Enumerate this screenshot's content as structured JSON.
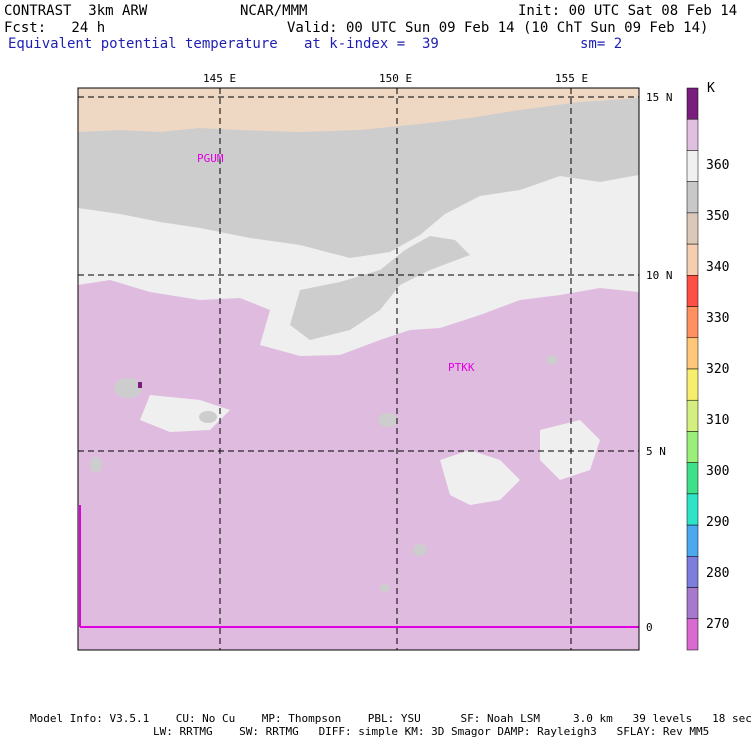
{
  "header": {
    "model": "CONTRAST  3km ARW",
    "center": "NCAR/MMM",
    "init": "Init: 00 UTC Sat 08 Feb 14",
    "fcst": "Fcst:   24 h",
    "valid": "Valid: 00 UTC Sun 09 Feb 14 (10 ChT Sun 09 Feb 14)",
    "field": "Equivalent potential temperature",
    "level": "at k-index =  39",
    "smoothing": "sm= 2"
  },
  "map": {
    "lon_labels": [
      "145 E",
      "150 E",
      "155 E"
    ],
    "lat_labels": [
      "15 N",
      "10 N",
      "5 N",
      "0"
    ],
    "stations": [
      "PGUM",
      "PTKK"
    ]
  },
  "colorbar": {
    "unit": "K",
    "levels": [
      "360",
      "350",
      "340",
      "330",
      "320",
      "310",
      "300",
      "290",
      "280",
      "270"
    ],
    "colors": [
      "#7a1e7e",
      "#e0bfe0",
      "#f0f0f0",
      "#c8c8c8",
      "#dcc8b8",
      "#f5cdb0",
      "#ff4f45",
      "#ff9060",
      "#ffc77a",
      "#f7ee6e",
      "#d4ef80",
      "#9aee7a",
      "#3ee08a",
      "#2ee4c8",
      "#4aa9ef",
      "#7d7ddb",
      "#a878cc",
      "#d86ad2"
    ]
  },
  "footer": {
    "line1": "Model Info: V3.5.1    CU: No Cu    MP: Thompson    PBL: YSU      SF: Noah LSM     3.0 km   39 levels   18 sec",
    "line2": "LW: RRTMG    SW: RRTMG   DIFF: simple KM: 3D Smagor DAMP: Rayleigh3   SFLAY: Rev MM5"
  },
  "palette": {
    "tan": "#eed8c4",
    "gray": "#cdcdcd",
    "light": "#efefef",
    "purple": "#dfbcdf",
    "magenta": "#e000e0"
  }
}
